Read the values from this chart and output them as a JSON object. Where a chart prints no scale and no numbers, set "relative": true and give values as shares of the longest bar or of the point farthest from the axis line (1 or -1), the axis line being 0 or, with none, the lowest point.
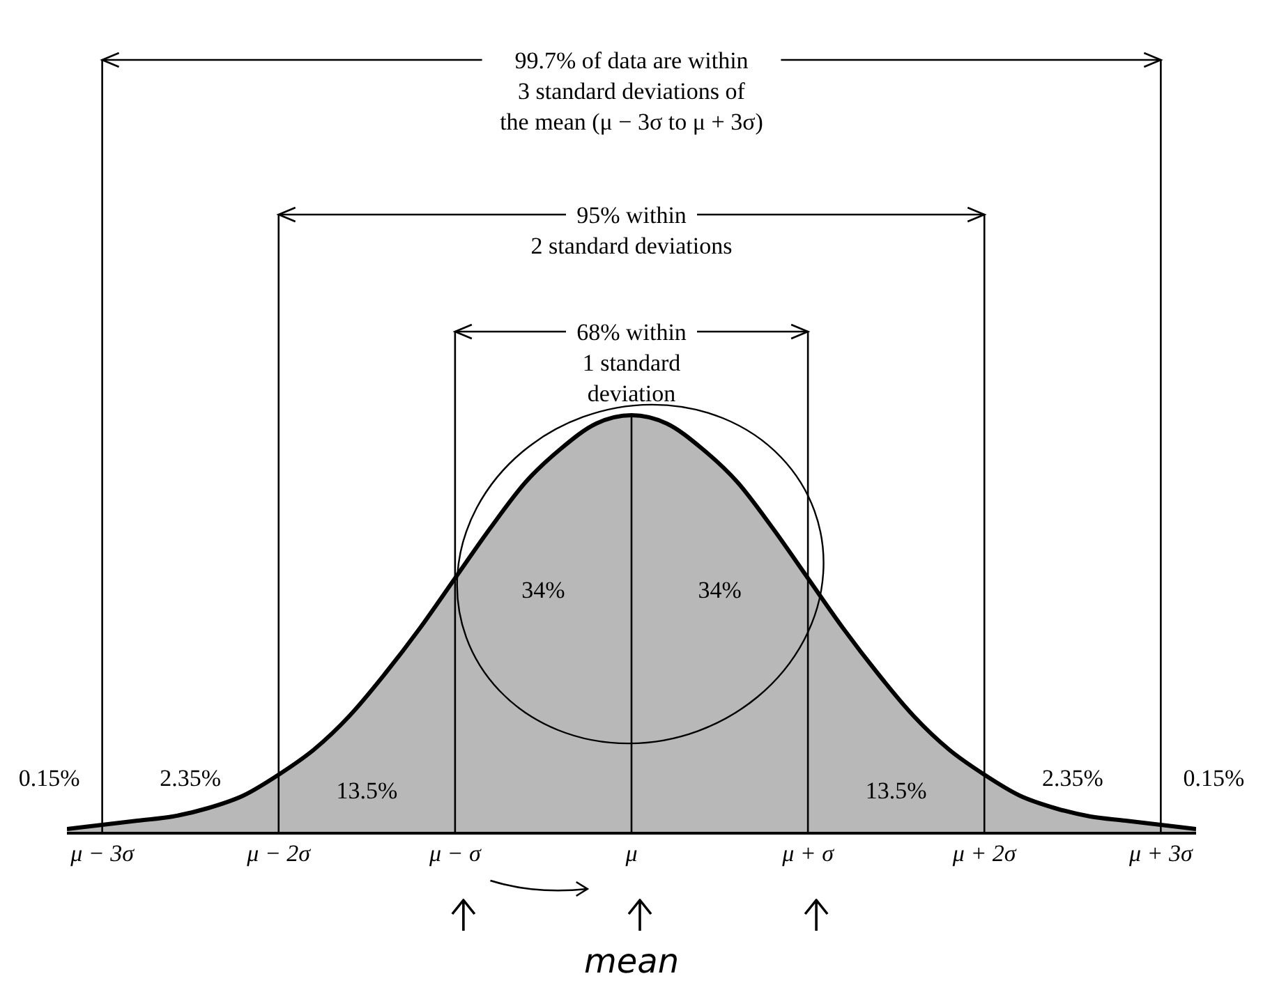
{
  "chart_data": {
    "type": "area",
    "relative": true,
    "color": "#b8b8b8",
    "x": [
      -3.2,
      -3.0,
      -2.8,
      -2.6,
      -2.4,
      -2.2,
      -2.0,
      -1.8,
      -1.6,
      -1.4,
      -1.2,
      -1.0,
      -0.8,
      -0.6,
      -0.4,
      -0.2,
      0,
      0.2,
      0.4,
      0.6,
      0.8,
      1.0,
      1.2,
      1.4,
      1.6,
      1.8,
      2.0,
      2.2,
      2.4,
      2.6,
      2.8,
      3.0,
      3.2
    ],
    "values": [
      0.01,
      0.02,
      0.03,
      0.04,
      0.06,
      0.09,
      0.14,
      0.2,
      0.28,
      0.38,
      0.49,
      0.61,
      0.73,
      0.84,
      0.92,
      0.98,
      1,
      0.98,
      0.92,
      0.84,
      0.73,
      0.61,
      0.49,
      0.38,
      0.28,
      0.2,
      0.14,
      0.09,
      0.06,
      0.04,
      0.03,
      0.02,
      0.01
    ],
    "xlim": [
      -3.2,
      3.2
    ],
    "xticks": [
      {
        "value": -3,
        "label": "μ − 3σ"
      },
      {
        "value": -2,
        "label": "μ − 2σ"
      },
      {
        "value": -1,
        "label": "μ − σ"
      },
      {
        "value": 0,
        "label": "μ"
      },
      {
        "value": 1,
        "label": "μ + σ"
      },
      {
        "value": 2,
        "label": "μ + 2σ"
      },
      {
        "value": 3,
        "label": "μ + 3σ"
      }
    ],
    "ref_lines": [
      {
        "axis": "x",
        "value": -3
      },
      {
        "axis": "x",
        "value": -2
      },
      {
        "axis": "x",
        "value": -1
      },
      {
        "axis": "x",
        "value": 0
      },
      {
        "axis": "x",
        "value": 1
      },
      {
        "axis": "x",
        "value": 2
      },
      {
        "axis": "x",
        "value": 3
      }
    ],
    "annotations": [
      "99.7% of data are within\n3 standard deviations of\nthe mean (μ − 3σ to μ + 3σ)",
      "95% within\n2 standard deviations",
      "68% within\n1 standard\ndeviation",
      "0.15%",
      "2.35%",
      "13.5%",
      "34%",
      "34%",
      "13.5%",
      "2.35%",
      "0.15%",
      {
        "text": "mean",
        "x": 0
      }
    ]
  }
}
